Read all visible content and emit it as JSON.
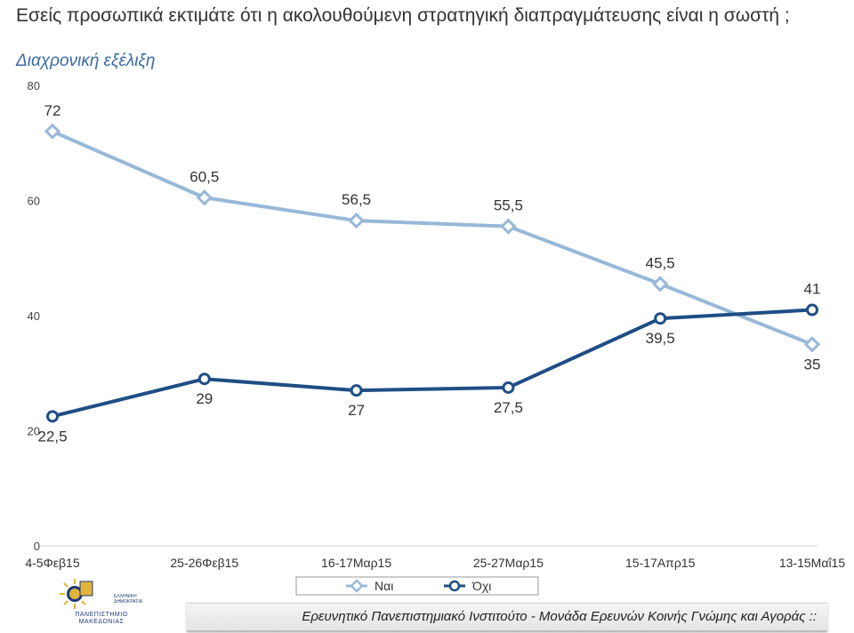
{
  "header": {
    "title": "Εσείς προσωπικά εκτιμάτε ότι η ακολουθούμενη στρατηγική διαπραγμάτευσης είναι η σωστή ;",
    "subtitle": "Διαχρονική εξέλιξη"
  },
  "chart_data": {
    "type": "line",
    "categories": [
      "4-5Φεβ15",
      "25-26Φεβ15",
      "16-17Μαρ15",
      "25-27Μαρ15",
      "15-17Απρ15",
      "13-15Μαΐ15"
    ],
    "series": [
      {
        "name": "Ναι",
        "values": [
          72,
          60.5,
          56.5,
          55.5,
          45.5,
          35
        ],
        "labels": [
          "72",
          "60,5",
          "56,5",
          "55,5",
          "45,5",
          "35"
        ],
        "color": "#97b8d8",
        "marker": "diamond",
        "label_pos": [
          "above",
          "above",
          "above",
          "above",
          "above",
          "below"
        ]
      },
      {
        "name": "Όχι",
        "values": [
          22.5,
          29,
          27,
          27.5,
          39.5,
          41
        ],
        "labels": [
          "22,5",
          "29",
          "27",
          "27,5",
          "39,5",
          "41"
        ],
        "color": "#1f4e85",
        "marker": "circle",
        "label_pos": [
          "below",
          "below",
          "below",
          "below",
          "below",
          "above"
        ]
      }
    ],
    "yticks": [
      "0",
      "20",
      "40",
      "60",
      "80"
    ],
    "ylim": [
      0,
      80
    ],
    "grid": false,
    "legend": "bottom"
  },
  "footer": {
    "text": "Ερευνητικό Πανεπιστημιακό Ινστιτούτο - Μονάδα Ερευνών Κοινής Γνώμης και Αγοράς ::"
  },
  "logo": {
    "caption_line1": "ΠΑΝΕΠΙΣΤΗΜΙΟ",
    "caption_line2": "ΜΑΚΕΔΟΝΙΑΣ",
    "side_text": "ΕΛΛΗΝΙΚΗ ΔΗΜΟΚΡΑΤΙΑ"
  }
}
